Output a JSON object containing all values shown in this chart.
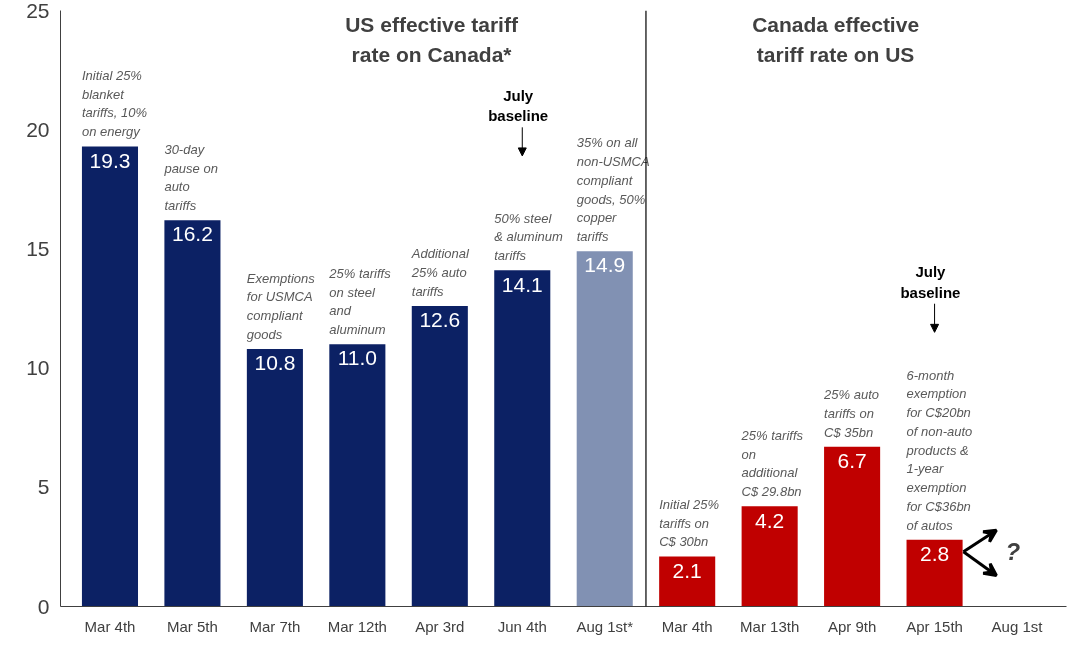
{
  "chart_data": {
    "type": "bar",
    "categories": [
      "Mar 4th",
      "Mar 5th",
      "Mar 7th",
      "Mar 12th",
      "Apr 3rd",
      "Jun 4th",
      "Aug 1st*",
      "Mar 4th",
      "Mar 13th",
      "Apr 9th",
      "Apr 15th",
      "Aug 1st"
    ],
    "values": [
      19.3,
      16.2,
      10.8,
      11.0,
      12.6,
      14.1,
      14.9,
      2.1,
      4.2,
      6.7,
      2.8,
      null
    ],
    "colors": [
      "#0c2164",
      "#0c2164",
      "#0c2164",
      "#0c2164",
      "#0c2164",
      "#0c2164",
      "#8191b3",
      "#c00000",
      "#c00000",
      "#c00000",
      "#c00000",
      "#c00000"
    ],
    "value_labels": [
      "19.3",
      "16.2",
      "10.8",
      "11.0",
      "12.6",
      "14.1",
      "14.9",
      "2.1",
      "4.2",
      "6.7",
      "2.8",
      null
    ],
    "ylim": [
      0,
      25
    ],
    "yticks": [
      0,
      5,
      10,
      15,
      20,
      25
    ],
    "annotations": [
      "Initial 25% blanket tariffs, 10% on energy",
      "30-day pause on auto tariffs",
      "Exemptions for USMCA compliant goods",
      "25% tariffs on steel and aluminum",
      "Additional 25% auto tariffs",
      "50% steel & aluminum tariffs",
      "35% on all non-USMCA compliant goods, 50% copper tariffs",
      "Initial 25% tariffs on C$ 30bn",
      "25% tariffs on additional C$ 29.8bn",
      "25% auto tariffs on C$ 35bn",
      "6-month exemption for C$20bn of non-auto products & 1-year exemption for C$36bn of autos",
      "July baseline",
      "July baseline",
      "?",
      "US effective tariff rate on Canada*",
      "Canada effective tariff rate on US"
    ]
  }
}
